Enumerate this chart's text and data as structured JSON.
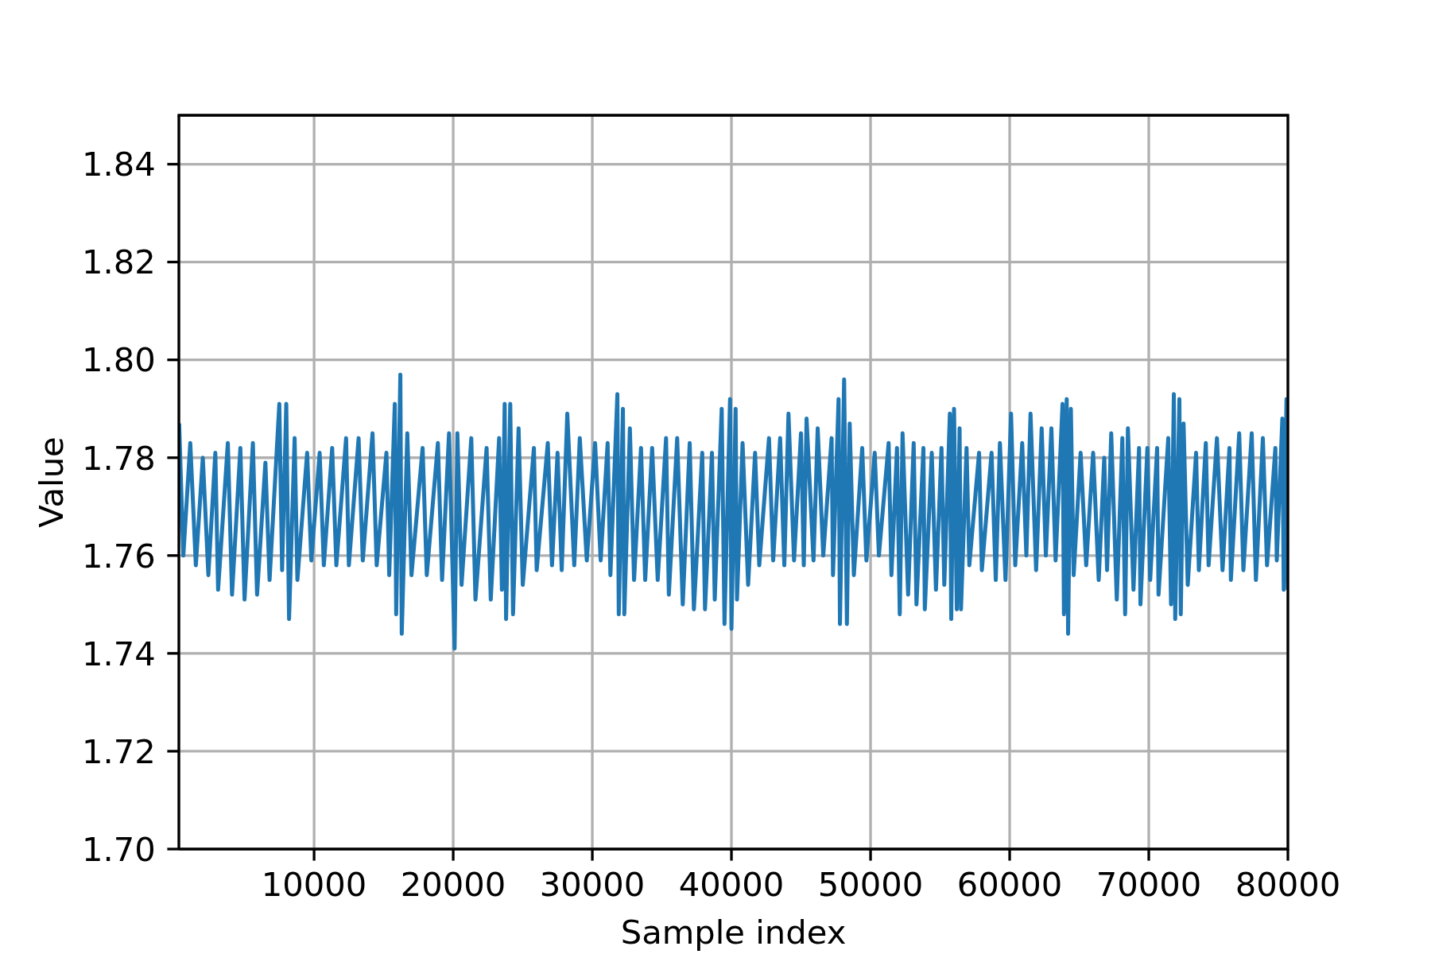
{
  "chart_data": {
    "type": "line",
    "xlabel": "Sample index",
    "ylabel": "Value",
    "color": "#1f77b4",
    "grid": true,
    "xlim": [
      280,
      80000
    ],
    "xticks": [
      10000,
      20000,
      30000,
      40000,
      50000,
      60000,
      70000,
      80000
    ],
    "ylim": [
      1.7,
      1.85
    ],
    "yticks": [
      {
        "value": 1.7,
        "label": "1.70"
      },
      {
        "value": 1.72,
        "label": "1.72"
      },
      {
        "value": 1.74,
        "label": "1.74"
      },
      {
        "value": 1.76,
        "label": "1.76"
      },
      {
        "value": 1.78,
        "label": "1.78"
      },
      {
        "value": 1.8,
        "label": "1.80"
      },
      {
        "value": 1.82,
        "label": "1.82"
      },
      {
        "value": 1.84,
        "label": "1.84"
      }
    ],
    "x": [
      300,
      600,
      1100,
      1500,
      2000,
      2400,
      2900,
      3100,
      3800,
      4100,
      4700,
      5000,
      5600,
      5900,
      6500,
      6800,
      7500,
      7700,
      8000,
      8200,
      8600,
      8800,
      9500,
      9800,
      10400,
      10700,
      11300,
      11600,
      12300,
      12500,
      13200,
      13500,
      14200,
      14500,
      15200,
      15400,
      15800,
      15900,
      16200,
      16300,
      16700,
      17000,
      17800,
      18100,
      18900,
      19200,
      19700,
      20100,
      20300,
      20600,
      21300,
      21600,
      22400,
      22700,
      23300,
      23500,
      23700,
      23800,
      24100,
      24300,
      24700,
      25000,
      25800,
      26000,
      26800,
      27100,
      27500,
      27800,
      28200,
      28700,
      29100,
      29600,
      30200,
      30600,
      31100,
      31300,
      31800,
      31900,
      32200,
      32300,
      32700,
      33000,
      33500,
      33800,
      34300,
      34700,
      35300,
      35500,
      36100,
      36500,
      37000,
      37300,
      37900,
      38100,
      38600,
      38800,
      39300,
      39500,
      39900,
      40000,
      40300,
      40400,
      40800,
      41200,
      41700,
      42000,
      42700,
      43000,
      43500,
      43800,
      44100,
      44500,
      45000,
      45200,
      45400,
      45900,
      46200,
      46600,
      47200,
      47300,
      47700,
      47800,
      48100,
      48300,
      48500,
      48800,
      49400,
      49700,
      50300,
      50600,
      51300,
      51500,
      51900,
      52100,
      52300,
      52700,
      53100,
      53300,
      53800,
      53900,
      54400,
      54700,
      55100,
      55300,
      55700,
      55800,
      56000,
      56200,
      56400,
      56500,
      56900,
      57100,
      57800,
      58000,
      58700,
      59000,
      59300,
      59700,
      60100,
      60400,
      60900,
      61200,
      61500,
      61900,
      62300,
      62600,
      63000,
      63300,
      63800,
      63900,
      64100,
      64200,
      64400,
      64600,
      65100,
      65500,
      66000,
      66400,
      66800,
      67000,
      67300,
      67700,
      68100,
      68300,
      68500,
      68900,
      69300,
      69400,
      69900,
      70100,
      70600,
      70700,
      71400,
      71600,
      71800,
      71900,
      72200,
      72300,
      72500,
      72800,
      73400,
      73600,
      74100,
      74300,
      74900,
      75300,
      75800,
      75900,
      76500,
      76800,
      77400,
      77700,
      78200,
      78500,
      79100,
      79200,
      79600,
      79700,
      79900,
      80000
    ],
    "values": [
      1.787,
      1.76,
      1.783,
      1.758,
      1.78,
      1.756,
      1.781,
      1.753,
      1.783,
      1.752,
      1.782,
      1.751,
      1.783,
      1.752,
      1.779,
      1.755,
      1.791,
      1.757,
      1.791,
      1.747,
      1.784,
      1.755,
      1.781,
      1.759,
      1.781,
      1.758,
      1.782,
      1.758,
      1.784,
      1.758,
      1.784,
      1.759,
      1.785,
      1.758,
      1.781,
      1.756,
      1.791,
      1.748,
      1.797,
      1.744,
      1.785,
      1.756,
      1.782,
      1.756,
      1.783,
      1.755,
      1.785,
      1.741,
      1.785,
      1.754,
      1.784,
      1.751,
      1.782,
      1.751,
      1.784,
      1.753,
      1.791,
      1.747,
      1.791,
      1.748,
      1.786,
      1.754,
      1.782,
      1.757,
      1.783,
      1.758,
      1.781,
      1.757,
      1.789,
      1.758,
      1.784,
      1.759,
      1.783,
      1.759,
      1.783,
      1.756,
      1.793,
      1.748,
      1.79,
      1.748,
      1.786,
      1.755,
      1.782,
      1.755,
      1.782,
      1.755,
      1.784,
      1.752,
      1.784,
      1.75,
      1.783,
      1.749,
      1.781,
      1.749,
      1.781,
      1.751,
      1.79,
      1.746,
      1.792,
      1.745,
      1.79,
      1.751,
      1.783,
      1.754,
      1.781,
      1.758,
      1.784,
      1.759,
      1.784,
      1.758,
      1.789,
      1.759,
      1.785,
      1.758,
      1.788,
      1.759,
      1.786,
      1.76,
      1.784,
      1.756,
      1.792,
      1.746,
      1.796,
      1.746,
      1.787,
      1.756,
      1.782,
      1.759,
      1.781,
      1.76,
      1.783,
      1.756,
      1.782,
      1.748,
      1.785,
      1.752,
      1.783,
      1.75,
      1.782,
      1.749,
      1.781,
      1.753,
      1.782,
      1.754,
      1.789,
      1.747,
      1.79,
      1.749,
      1.786,
      1.749,
      1.782,
      1.758,
      1.781,
      1.757,
      1.781,
      1.755,
      1.783,
      1.755,
      1.789,
      1.758,
      1.783,
      1.76,
      1.789,
      1.757,
      1.786,
      1.76,
      1.786,
      1.759,
      1.791,
      1.748,
      1.792,
      1.744,
      1.79,
      1.756,
      1.781,
      1.758,
      1.781,
      1.755,
      1.78,
      1.757,
      1.785,
      1.751,
      1.784,
      1.748,
      1.786,
      1.753,
      1.782,
      1.75,
      1.782,
      1.755,
      1.782,
      1.752,
      1.784,
      1.75,
      1.793,
      1.747,
      1.792,
      1.748,
      1.787,
      1.754,
      1.781,
      1.757,
      1.783,
      1.758,
      1.784,
      1.757,
      1.782,
      1.755,
      1.785,
      1.757,
      1.785,
      1.755,
      1.784,
      1.758,
      1.782,
      1.759,
      1.788,
      1.753,
      1.792,
      1.753
    ]
  }
}
